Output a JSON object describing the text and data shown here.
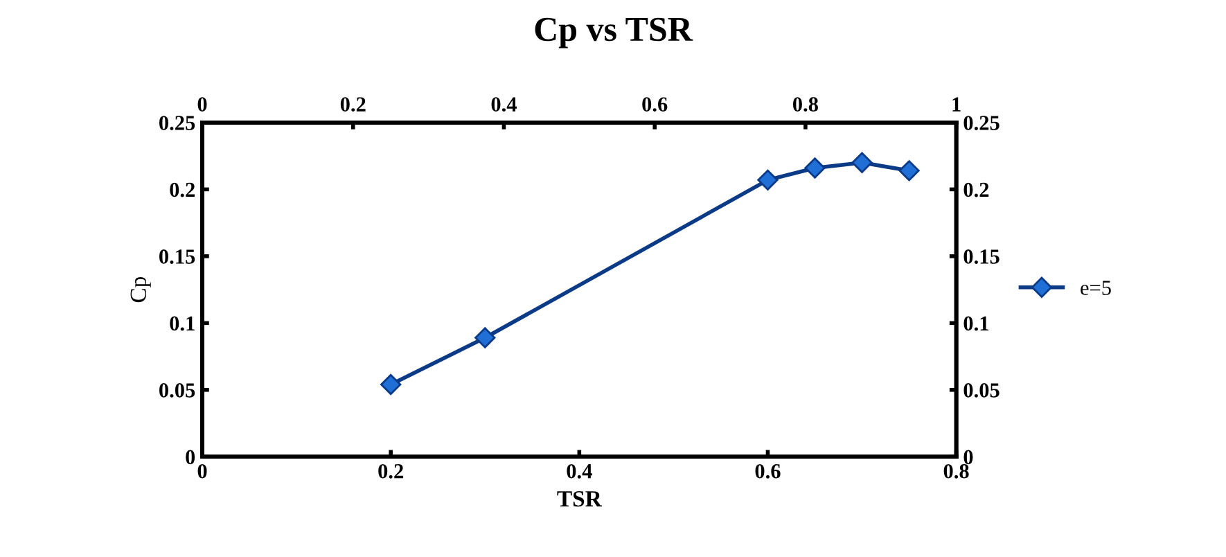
{
  "chart_data": {
    "type": "line",
    "title": "Cp vs TSR",
    "xlabel": "TSR",
    "ylabel": "Cp",
    "x": [
      0.2,
      0.3,
      0.6,
      0.65,
      0.7,
      0.75
    ],
    "series": [
      {
        "name": "e=5",
        "color": "#1f6fd6",
        "values": [
          0.054,
          0.089,
          0.207,
          0.216,
          0.22,
          0.214
        ]
      }
    ],
    "xlim": [
      0,
      0.8
    ],
    "xticks": [
      0,
      0.2,
      0.4,
      0.6,
      0.8
    ],
    "x2lim": [
      0,
      1
    ],
    "x2ticks": [
      0,
      0.2,
      0.4,
      0.6,
      0.8,
      1
    ],
    "ylim": [
      0,
      0.25
    ],
    "yticks": [
      0,
      0.05,
      0.1,
      0.15,
      0.2,
      0.25
    ],
    "y2lim": [
      0,
      0.25
    ],
    "y2ticks": [
      0,
      0.05,
      0.1,
      0.15,
      0.2,
      0.25
    ],
    "marker": "diamond",
    "line_style": "solid",
    "grid": false,
    "legend": "right"
  }
}
